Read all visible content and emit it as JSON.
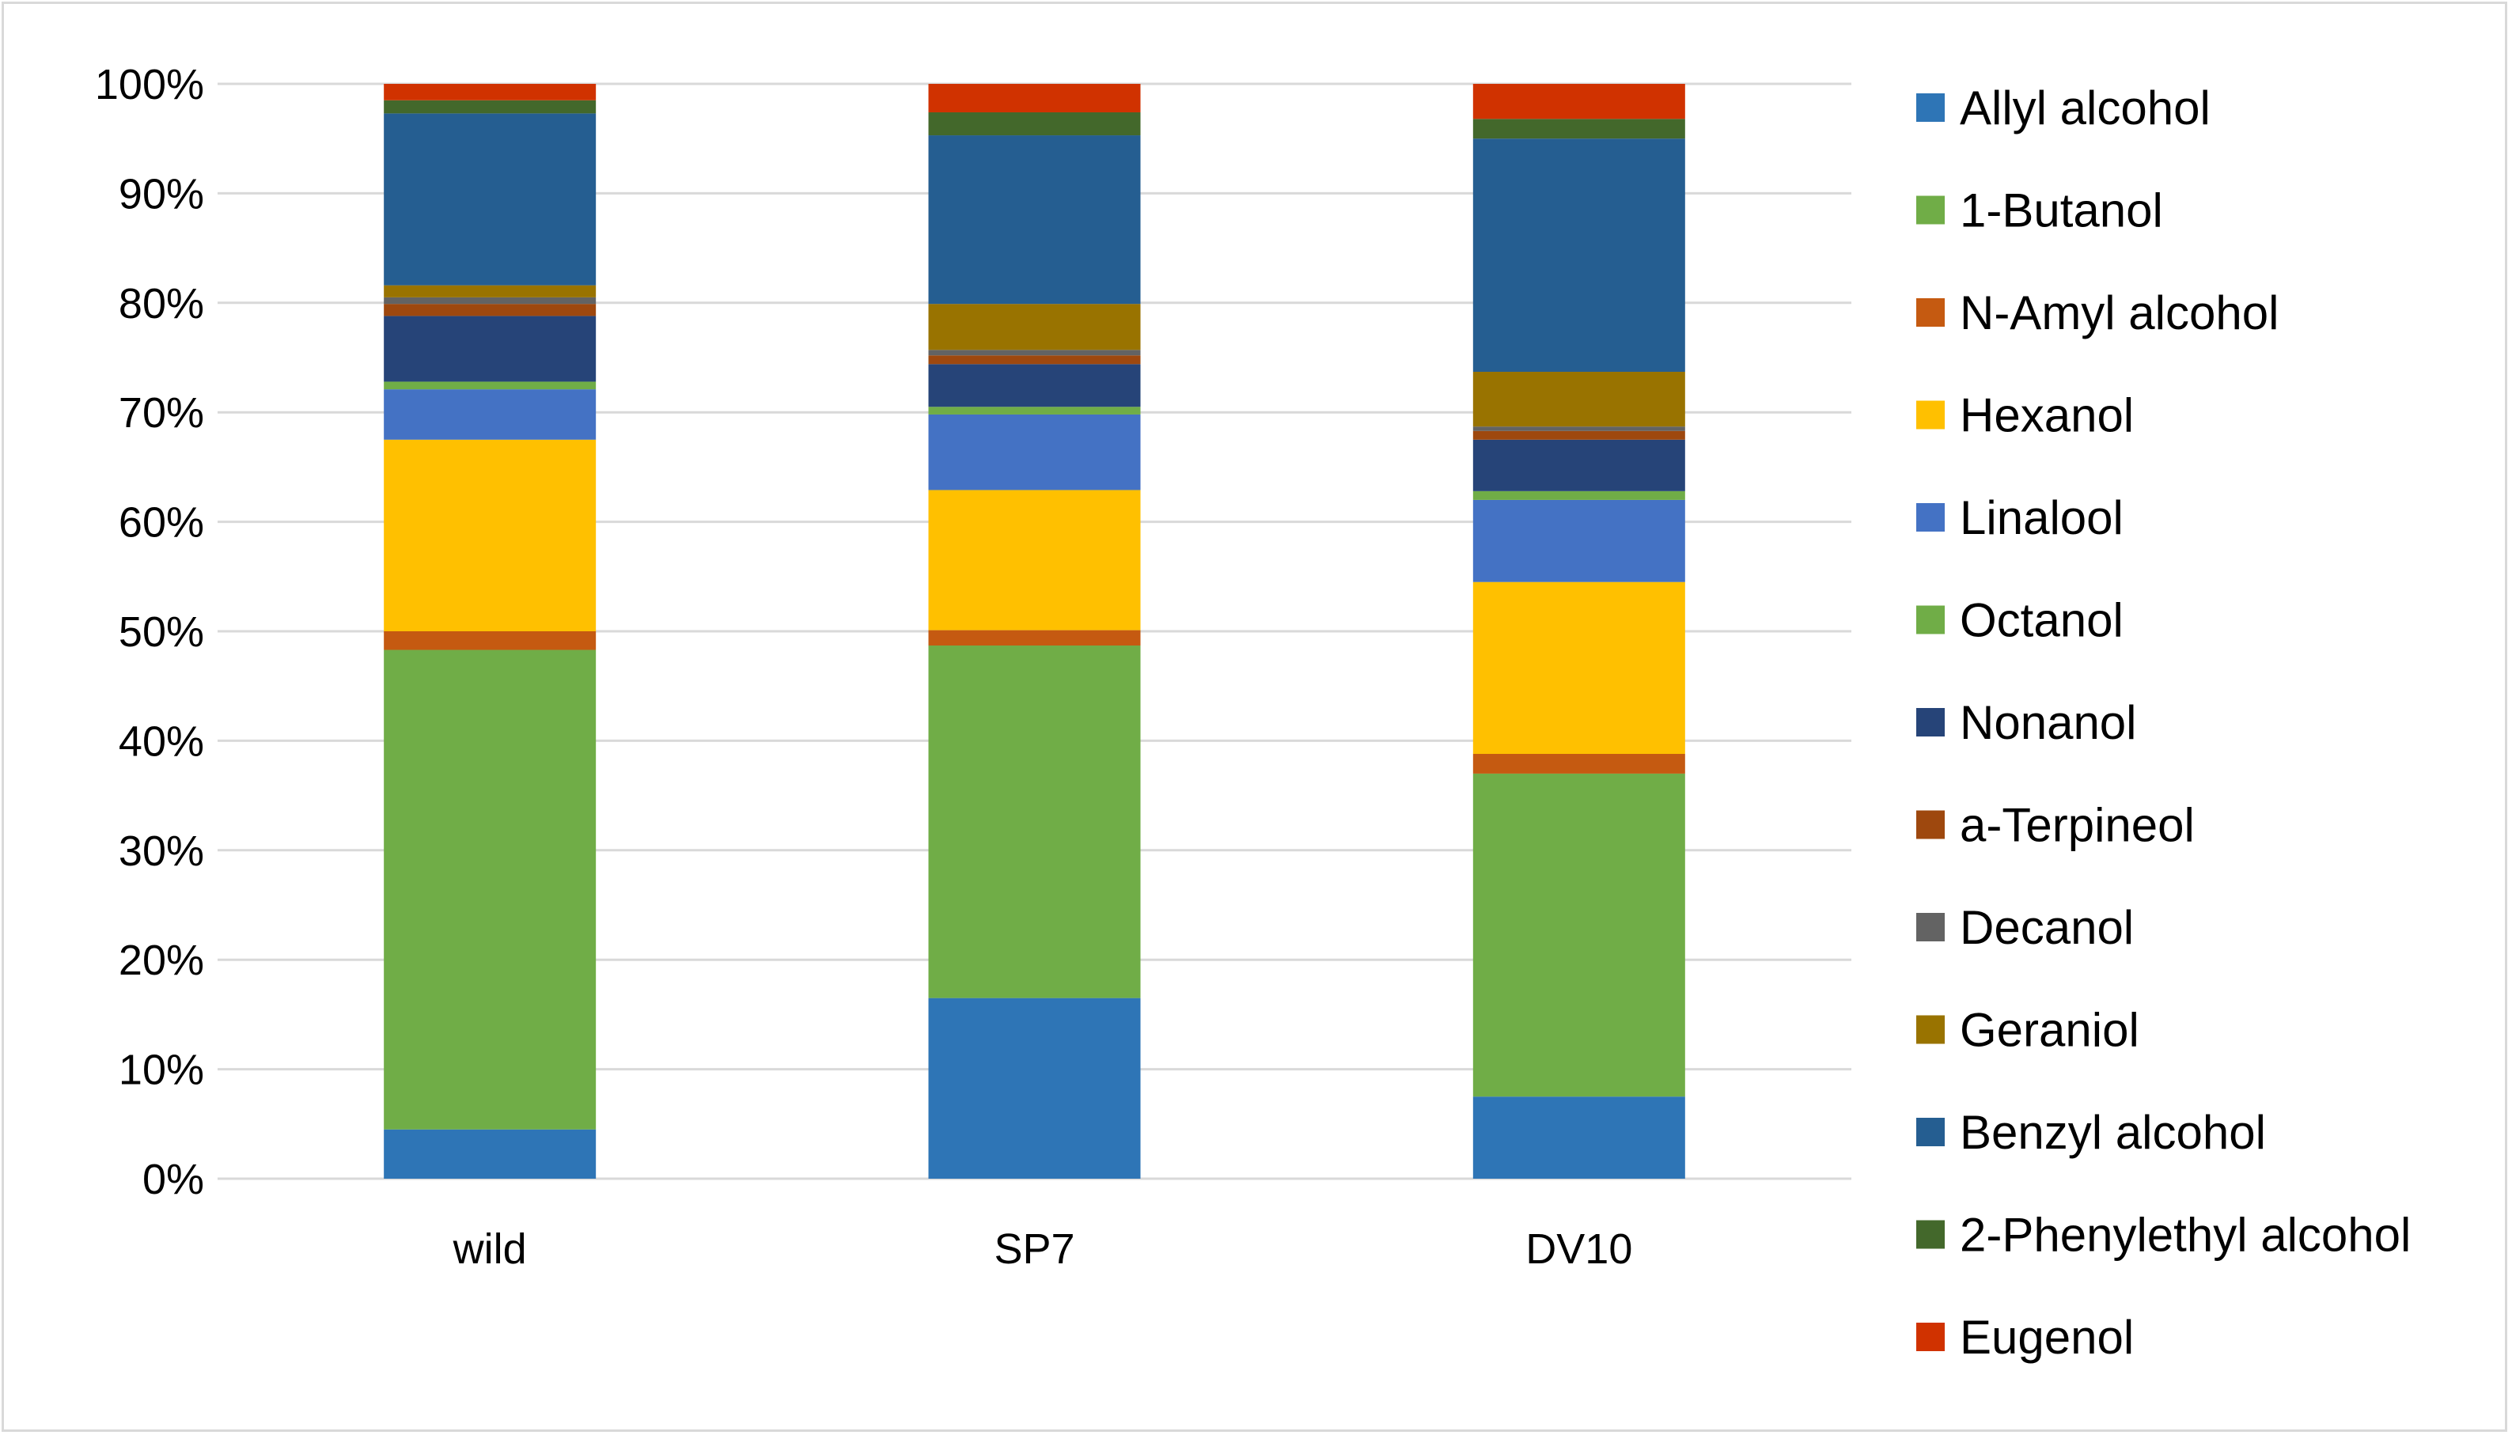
{
  "chart_data": {
    "type": "bar",
    "stacked": true,
    "percent": true,
    "title": "",
    "xlabel": "",
    "ylabel": "",
    "ylim": [
      0,
      100
    ],
    "y_ticks": [
      "0%",
      "10%",
      "20%",
      "30%",
      "40%",
      "50%",
      "60%",
      "70%",
      "80%",
      "90%",
      "100%"
    ],
    "grid": true,
    "legend_position": "right",
    "categories": [
      "wild",
      "SP7",
      "DV10"
    ],
    "series": [
      {
        "name": "Allyl alcohol",
        "color": "#2e75b6",
        "values": [
          4.5,
          16.5,
          7.5
        ]
      },
      {
        "name": "1-Butanol",
        "color": "#70ad47",
        "values": [
          43.8,
          32.2,
          29.5
        ]
      },
      {
        "name": "N-Amyl alcohol",
        "color": "#c55a11",
        "values": [
          1.7,
          1.4,
          1.8
        ]
      },
      {
        "name": "Hexanol",
        "color": "#ffc000",
        "values": [
          17.5,
          12.8,
          15.7
        ]
      },
      {
        "name": "Linalool",
        "color": "#4472c4",
        "values": [
          4.6,
          6.9,
          7.5
        ]
      },
      {
        "name": "Octanol",
        "color": "#70ad47",
        "values": [
          0.7,
          0.7,
          0.8
        ]
      },
      {
        "name": "Nonanol",
        "color": "#264478",
        "values": [
          6.0,
          3.9,
          4.7
        ]
      },
      {
        "name": "a-Terpineol",
        "color": "#9e480e",
        "values": [
          1.1,
          0.8,
          0.8
        ]
      },
      {
        "name": "Decanol",
        "color": "#636363",
        "values": [
          0.6,
          0.5,
          0.4
        ]
      },
      {
        "name": "Geraniol",
        "color": "#997300",
        "values": [
          1.1,
          4.2,
          5.0
        ]
      },
      {
        "name": "Benzyl alcohol",
        "color": "#255e91",
        "values": [
          15.7,
          15.4,
          21.3
        ]
      },
      {
        "name": "2-Phenylethyl alcohol",
        "color": "#43682b",
        "values": [
          1.2,
          2.1,
          1.8
        ]
      },
      {
        "name": "Eugenol",
        "color": "#d03200",
        "values": [
          1.5,
          2.6,
          3.2
        ]
      }
    ]
  },
  "style": {
    "grid_color": "#d9d9d9",
    "text_color": "#000000",
    "background": "#ffffff"
  }
}
